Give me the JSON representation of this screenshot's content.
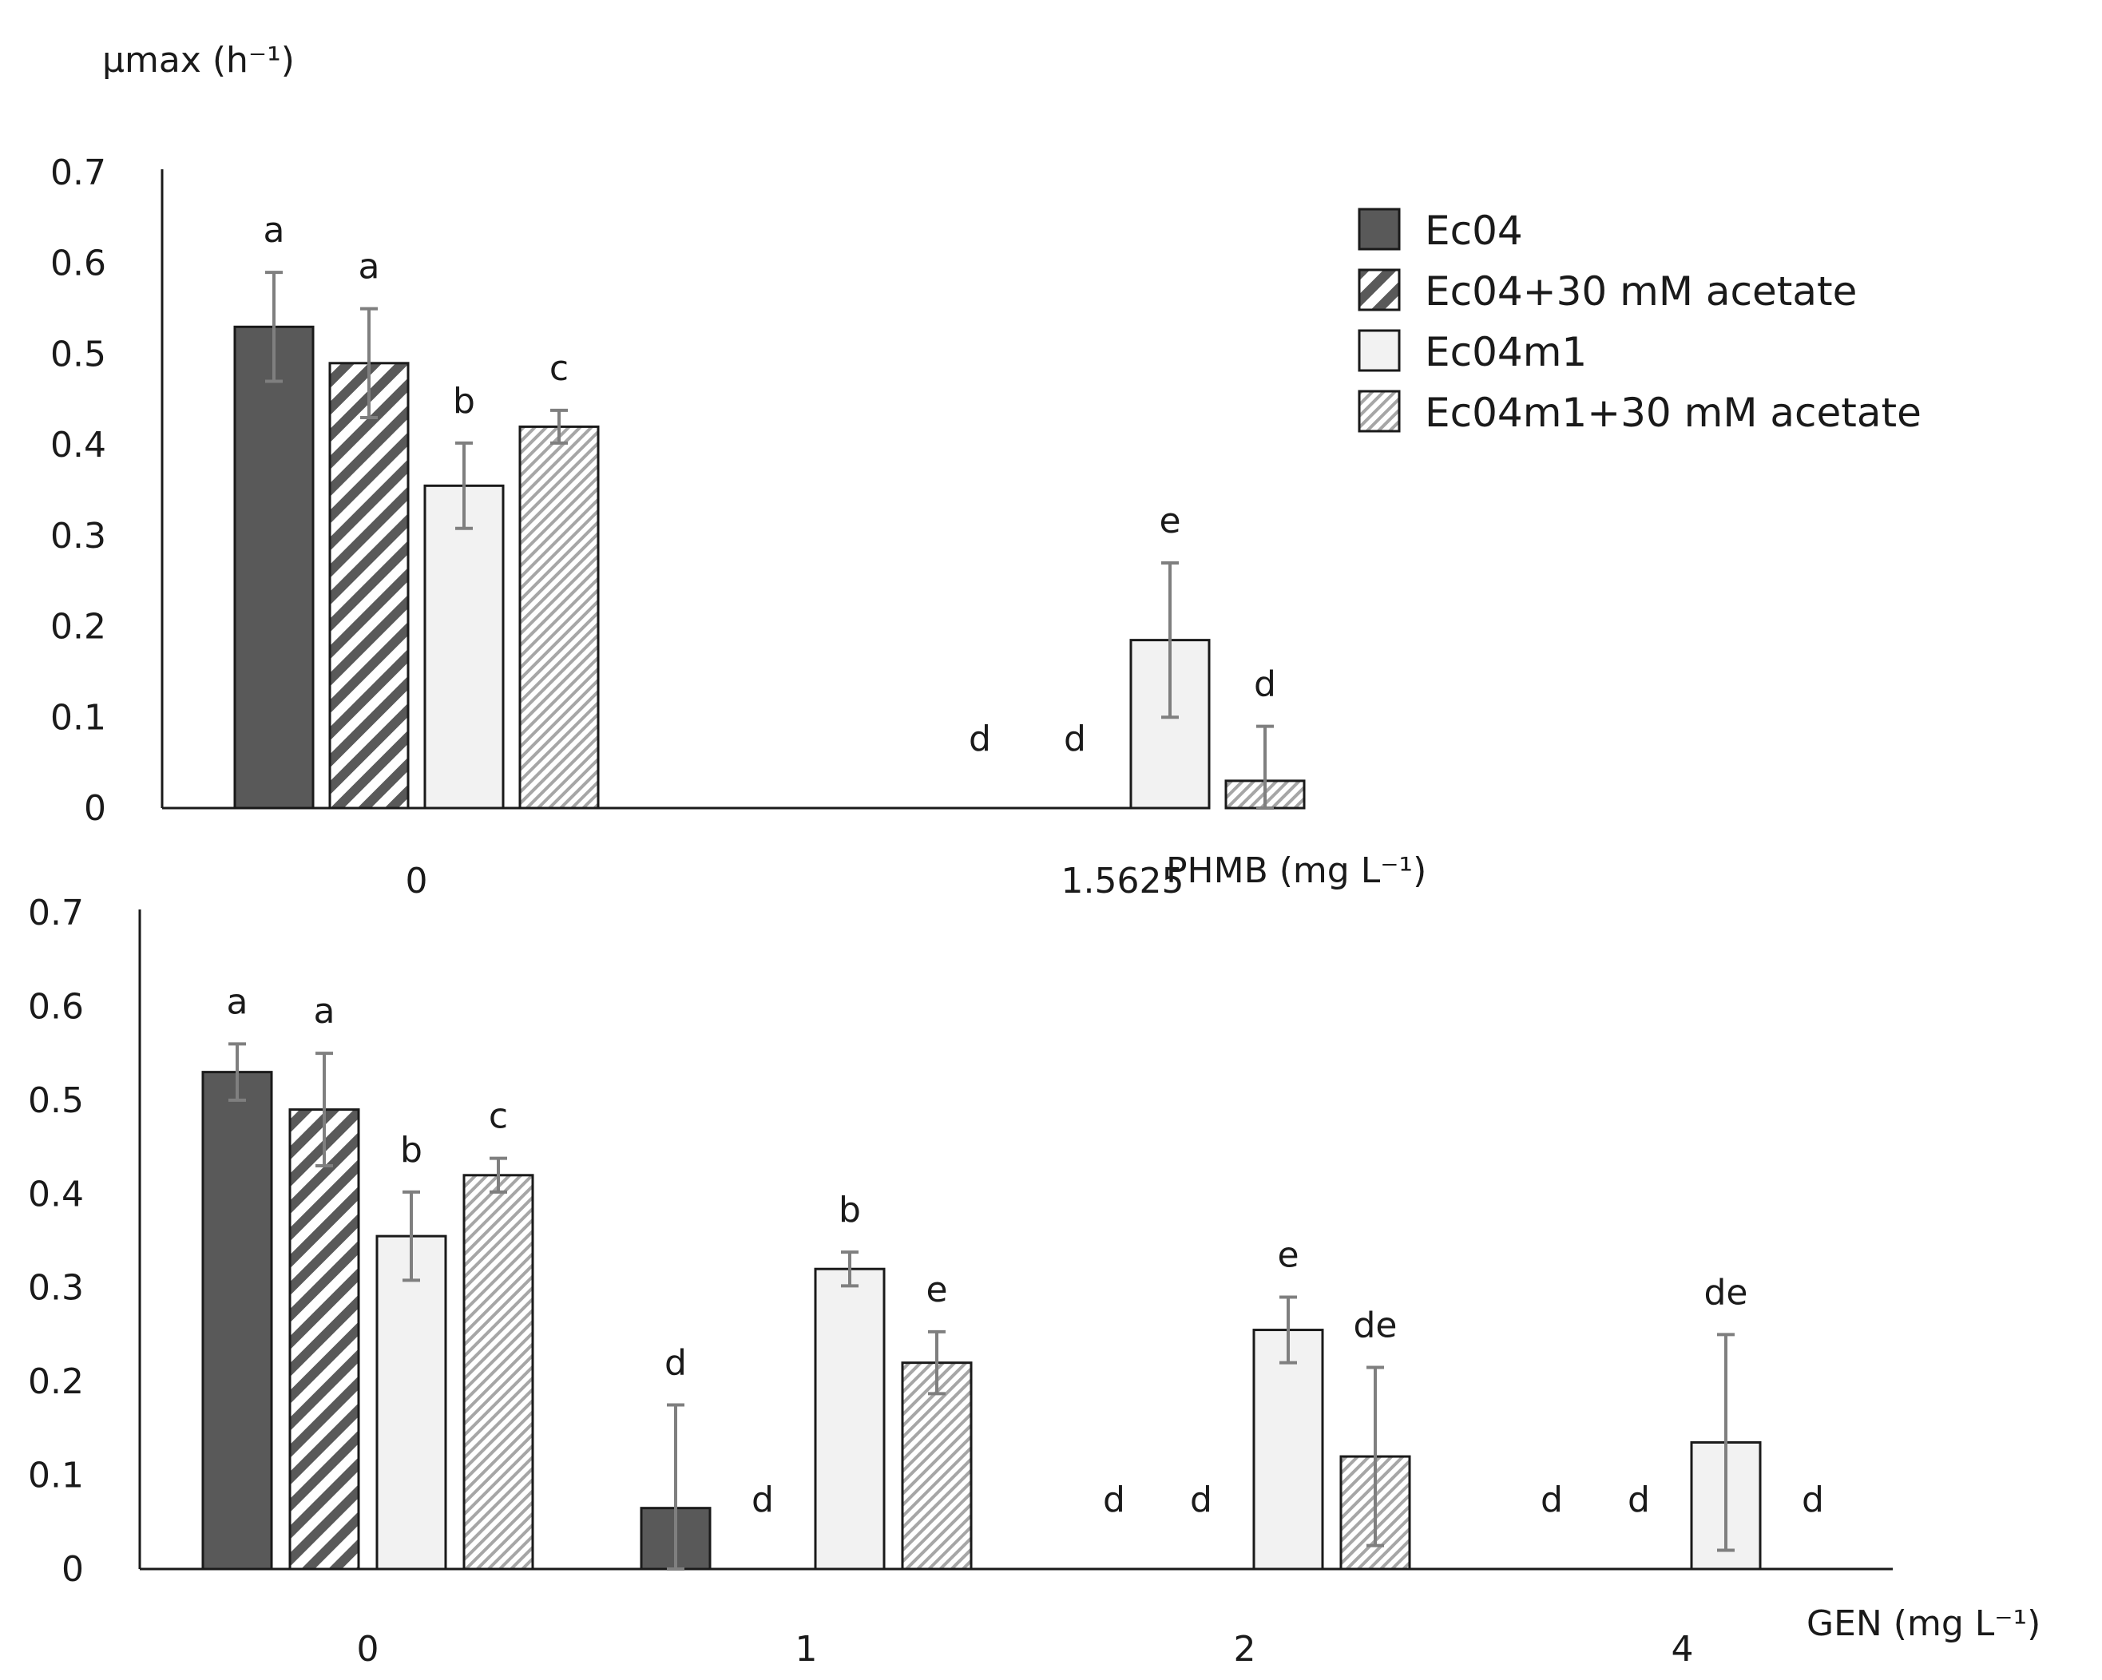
{
  "y_unit_label": "μmax (h⁻¹)",
  "legend": [
    {
      "label": "Ec04",
      "pattern": "solid"
    },
    {
      "label": "Ec04+30 mM acetate",
      "pattern": "dark-hatch"
    },
    {
      "label": "Ec04m1",
      "pattern": "light"
    },
    {
      "label": "Ec04m1+30 mM acetate",
      "pattern": "light-hatch"
    }
  ],
  "colors": {
    "dark_fill": "#595959",
    "light_fill": "#f2f2f2",
    "hatch_light": "#a6a6a6",
    "outline": "#1a1a1a",
    "error_bar": "#7f7f7f"
  },
  "chart_data": [
    {
      "type": "bar",
      "ylabel": "μmax (h⁻¹)",
      "xlabel": "PHMB (mg L⁻¹)",
      "ylim": [
        0,
        0.7
      ],
      "yticks": [
        "0",
        "0.1",
        "0.2",
        "0.3",
        "0.4",
        "0.5",
        "0.6",
        "0.7"
      ],
      "categories": [
        "0",
        "1.5625"
      ],
      "series": [
        {
          "name": "Ec04",
          "values": [
            0.53,
            0
          ],
          "errors": [
            0.06,
            0
          ],
          "letters": [
            "a",
            "d"
          ]
        },
        {
          "name": "Ec04+30 mM acetate",
          "values": [
            0.49,
            0
          ],
          "errors": [
            0.06,
            0
          ],
          "letters": [
            "a",
            "d"
          ]
        },
        {
          "name": "Ec04m1",
          "values": [
            0.355,
            0.185
          ],
          "errors": [
            0.047,
            0.085
          ],
          "letters": [
            "b",
            "e"
          ]
        },
        {
          "name": "Ec04m1+30 mM acetate",
          "values": [
            0.42,
            0.03
          ],
          "errors": [
            0.018,
            0.06
          ],
          "letters": [
            "c",
            "d"
          ]
        }
      ]
    },
    {
      "type": "bar",
      "ylabel": "μmax (h⁻¹)",
      "xlabel": "GEN (mg L⁻¹)",
      "ylim": [
        0,
        0.7
      ],
      "yticks": [
        "0",
        "0.1",
        "0.2",
        "0.3",
        "0.4",
        "0.5",
        "0.6",
        "0.7"
      ],
      "categories": [
        "0",
        "1",
        "2",
        "4"
      ],
      "series": [
        {
          "name": "Ec04",
          "values": [
            0.53,
            0.065,
            0,
            0
          ],
          "errors": [
            0.03,
            0.11,
            0,
            0
          ],
          "letters": [
            "a",
            "d",
            "d",
            "d"
          ]
        },
        {
          "name": "Ec04+30 mM acetate",
          "values": [
            0.49,
            0,
            0,
            0
          ],
          "errors": [
            0.06,
            0,
            0,
            0
          ],
          "letters": [
            "a",
            "d",
            "d",
            "d"
          ]
        },
        {
          "name": "Ec04m1",
          "values": [
            0.355,
            0.32,
            0.255,
            0.135
          ],
          "errors": [
            0.047,
            0.018,
            0.035,
            0.115
          ],
          "letters": [
            "b",
            "b",
            "e",
            "de"
          ]
        },
        {
          "name": "Ec04m1+30 mM acetate",
          "values": [
            0.42,
            0.22,
            0.12,
            0
          ],
          "errors": [
            0.018,
            0.033,
            0.095,
            0
          ],
          "letters": [
            "c",
            "e",
            "de",
            "d"
          ]
        }
      ]
    }
  ]
}
